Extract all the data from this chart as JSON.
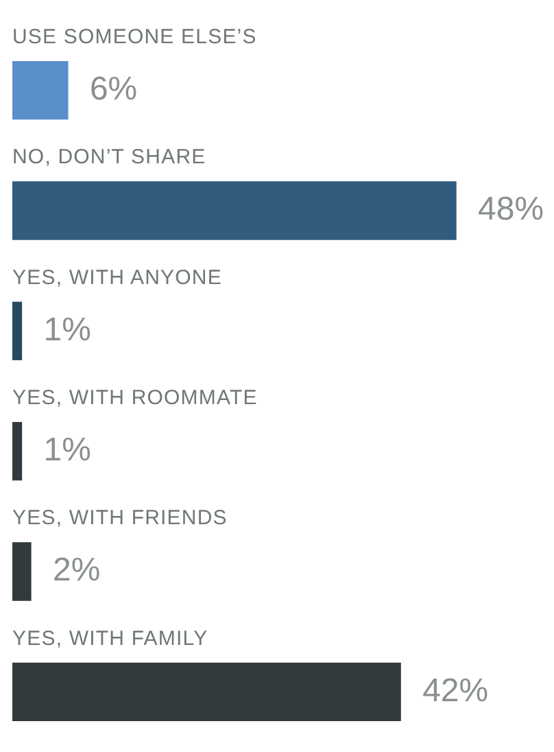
{
  "chart_data": {
    "type": "bar",
    "orientation": "horizontal",
    "categories": [
      "USE SOMEONE ELSE’S",
      "NO, DON’T SHARE",
      "YES, WITH ANYONE",
      "YES, WITH ROOMMATE",
      "YES, WITH FRIENDS",
      "YES, WITH FAMILY"
    ],
    "values": [
      6,
      48,
      1,
      1,
      2,
      42
    ],
    "colors": [
      "#5b8fca",
      "#325b7e",
      "#284a5f",
      "#323a3d",
      "#323a3d",
      "#323a3d"
    ],
    "value_labels": [
      "6%",
      "48%",
      "1%",
      "1%",
      "2%",
      "42%"
    ]
  }
}
